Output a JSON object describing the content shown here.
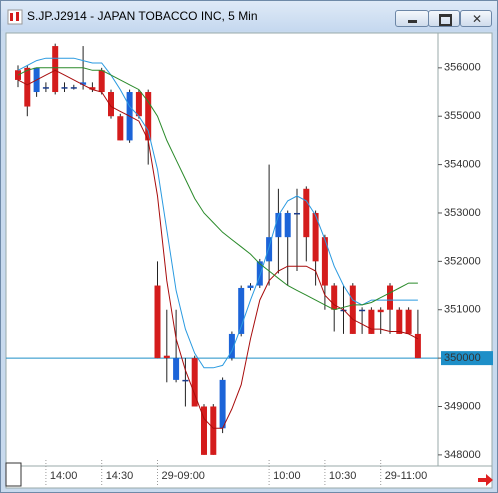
{
  "window": {
    "title": "S.JP.J2914 - JAPAN TOBACCO INC, 5 Min"
  },
  "chart_data": {
    "type": "candlestick",
    "categories": [
      null,
      null,
      null,
      "14:00",
      null,
      null,
      null,
      null,
      null,
      "14:30",
      null,
      null,
      null,
      null,
      null,
      "29-09:00",
      null,
      null,
      null,
      null,
      null,
      null,
      null,
      null,
      null,
      null,
      null,
      "10:00",
      null,
      null,
      null,
      null,
      null,
      "10:30",
      null,
      null,
      null,
      null,
      null,
      "29-11:00",
      null,
      null,
      null,
      null
    ],
    "open": [
      355950,
      356000,
      355500,
      355600,
      356450,
      355600,
      355600,
      355650,
      355600,
      355950,
      355500,
      355000,
      354500,
      355500,
      355500,
      351500,
      350050,
      349550,
      349550,
      350000,
      349000,
      349000,
      348550,
      350000,
      350500,
      351450,
      351500,
      352000,
      352500,
      352500,
      353000,
      353500,
      353000,
      352500,
      351500,
      351000,
      351500,
      351000,
      351000,
      351000,
      351500,
      351000,
      351000,
      350500
    ],
    "high": [
      356050,
      356050,
      356000,
      355700,
      356500,
      355700,
      355650,
      356450,
      355700,
      356000,
      355550,
      355050,
      355550,
      355550,
      355550,
      352000,
      351000,
      351000,
      350000,
      350050,
      349050,
      349050,
      349600,
      350550,
      351500,
      351550,
      352050,
      354000,
      353500,
      353050,
      353500,
      353550,
      353050,
      352550,
      351550,
      351500,
      351550,
      351050,
      351050,
      351050,
      351550,
      351050,
      351050,
      351000
    ],
    "low": [
      355600,
      355000,
      355400,
      355500,
      355450,
      355500,
      355550,
      355550,
      355500,
      355450,
      354950,
      354500,
      354450,
      354950,
      354000,
      350000,
      349500,
      349500,
      349000,
      349000,
      348000,
      348000,
      348450,
      349950,
      350450,
      351400,
      351450,
      351500,
      351750,
      351500,
      351800,
      352000,
      351500,
      351000,
      350550,
      350500,
      350500,
      350500,
      350500,
      350500,
      350500,
      350500,
      350500,
      350000
    ],
    "close": [
      355750,
      355200,
      356000,
      355600,
      355500,
      355600,
      355600,
      355700,
      355550,
      355500,
      355000,
      354500,
      355500,
      355000,
      354500,
      350000,
      350000,
      350000,
      349550,
      349000,
      348000,
      348000,
      349550,
      350500,
      351450,
      351500,
      352000,
      352500,
      353000,
      353000,
      353000,
      352500,
      352000,
      351500,
      351000,
      351000,
      350500,
      351000,
      350500,
      350950,
      351000,
      350500,
      350500,
      350000
    ],
    "up_color": "#1c64d8",
    "down_color": "#d41c1c",
    "series": [
      {
        "color": "#a80c0c",
        "values": [
          355750,
          355650,
          355750,
          355850,
          355950,
          355850,
          355750,
          355650,
          355550,
          355500,
          355200,
          355100,
          355000,
          354900,
          354500,
          353350,
          351600,
          350400,
          349750,
          349250,
          348750,
          348550,
          348550,
          348950,
          349450,
          350400,
          351200,
          351600,
          351800,
          351900,
          351900,
          351900,
          351800,
          351300,
          351100,
          351000,
          350800,
          350700,
          350600,
          350600,
          350550,
          350550,
          350500,
          350400
        ]
      },
      {
        "color": "#2a9ae0",
        "values": [
          355950,
          356050,
          356150,
          356200,
          356200,
          356200,
          356200,
          356150,
          356100,
          356100,
          355850,
          355550,
          355200,
          355000,
          354700,
          353900,
          352650,
          351400,
          350600,
          350100,
          349800,
          349800,
          349850,
          350150,
          350650,
          351200,
          351700,
          352300,
          352950,
          353250,
          353350,
          353250,
          352950,
          352450,
          351900,
          351500,
          351200,
          351100,
          351200,
          351200,
          351200,
          351200,
          351200,
          351200
        ]
      },
      {
        "color": "#2a8a2a",
        "values": [
          355850,
          355950,
          356000,
          356000,
          356000,
          356000,
          356000,
          356000,
          355950,
          355950,
          355850,
          355750,
          355650,
          355550,
          355300,
          355000,
          354500,
          354100,
          353700,
          353300,
          353000,
          352800,
          352600,
          352450,
          352300,
          352150,
          351950,
          351800,
          351650,
          351500,
          351400,
          351300,
          351200,
          351100,
          351000,
          351050,
          351100,
          351100,
          351150,
          351250,
          351350,
          351450,
          351550,
          351550
        ]
      }
    ],
    "ylim": [
      347770,
      356720
    ],
    "yticks": [
      348000,
      349000,
      350000,
      351000,
      352000,
      353000,
      354000,
      355000,
      356000
    ],
    "last_price": 350000,
    "last_price_color": "#1e8fc8"
  }
}
